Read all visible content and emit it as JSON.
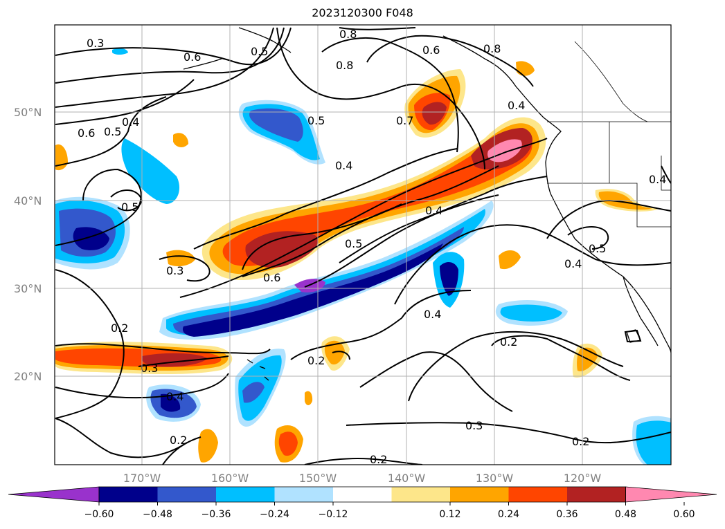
{
  "title": "2023120300 F048",
  "lat_labels": [
    "50°N",
    "40°N",
    "30°N",
    "20°N"
  ],
  "lon_labels": [
    "170°W",
    "160°W",
    "150°W",
    "140°W",
    "130°W",
    "120°W"
  ],
  "colorbar": {
    "colors": [
      "#9932cc",
      "#00008b",
      "#3358cc",
      "#00bfff",
      "#b0e2ff",
      "#ffffff",
      "#fde68a",
      "#ffa500",
      "#ff4500",
      "#b22222",
      "#ff88b0"
    ],
    "tick_labels": [
      "−0.60",
      "−0.48",
      "−0.36",
      "−0.24",
      "−0.12",
      "0.12",
      "0.24",
      "0.36",
      "0.48",
      "0.60"
    ]
  },
  "contour_labels": [
    "0.3",
    "0.6",
    "0.5",
    "0.8",
    "0.8",
    "0.6",
    "0.8",
    "0.6",
    "0.5",
    "0.4",
    "0.5",
    "0.7",
    "0.4",
    "0.4",
    "0.4",
    "0.5",
    "0.3",
    "0.5",
    "0.6",
    "0.4",
    "0.5",
    "0.4",
    "0.2",
    "0.3",
    "0.4",
    "0.2",
    "0.2",
    "0.2",
    "0.4",
    "0.3",
    "0.2",
    "0.2"
  ]
}
